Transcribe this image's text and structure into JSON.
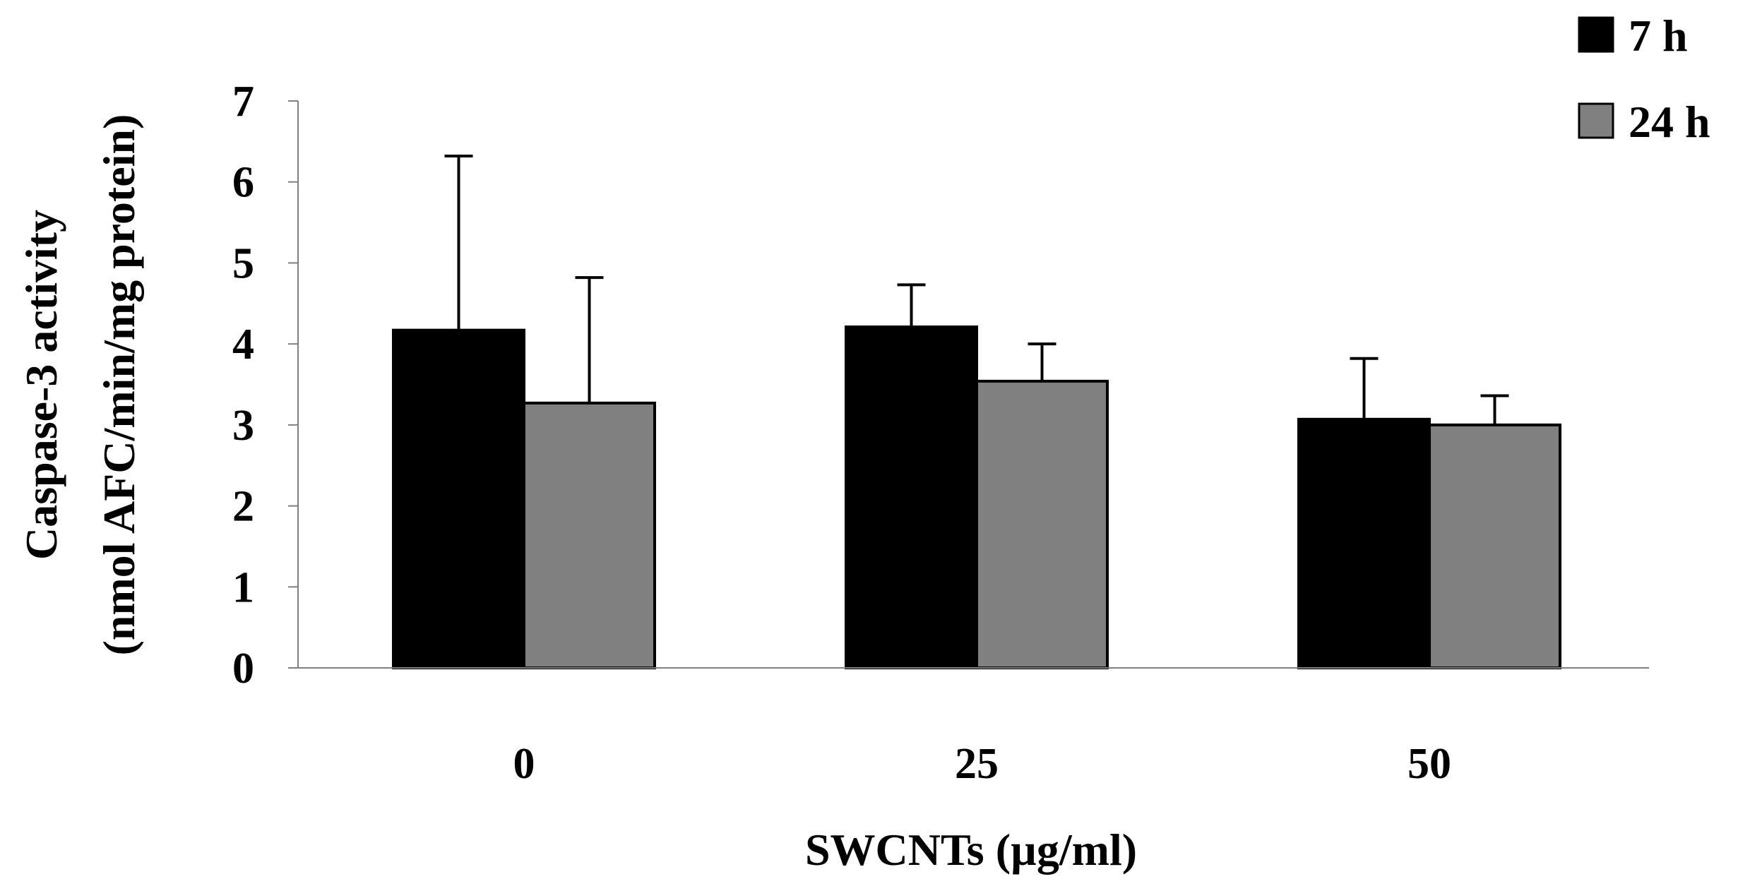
{
  "chart_data": {
    "type": "bar",
    "categories": [
      "0",
      "25",
      "50"
    ],
    "series": [
      {
        "name": "7 h",
        "color": "#000000",
        "values": [
          4.17,
          4.21,
          3.07
        ],
        "errors": [
          2.15,
          0.52,
          0.75
        ]
      },
      {
        "name": "24 h",
        "color": "#808080",
        "values": [
          3.27,
          3.54,
          3.0
        ],
        "errors": [
          1.55,
          0.46,
          0.36
        ]
      }
    ],
    "xlabel": "SWCNTs (µg/ml)",
    "ylabel_line1": "Caspase-3 activity",
    "ylabel_line2": "(nmol AFC/min/mg protein)",
    "ylim": [
      0,
      7
    ],
    "yticks": [
      "0",
      "1",
      "2",
      "3",
      "4",
      "5",
      "6",
      "7"
    ],
    "legend_position": "top-right",
    "grid": false
  }
}
